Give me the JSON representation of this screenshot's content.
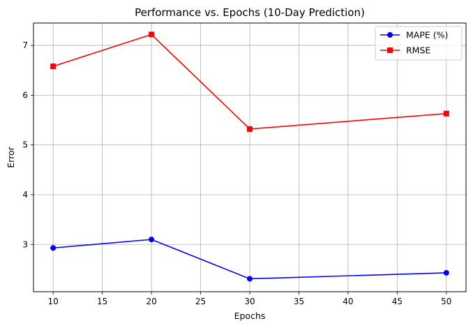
{
  "chart_data": {
    "type": "line",
    "title": "Performance vs. Epochs (10-Day Prediction)",
    "xlabel": "Epochs",
    "ylabel": "Error",
    "x": [
      10,
      20,
      30,
      50
    ],
    "xlim": [
      8,
      52
    ],
    "ylim": [
      2.05,
      7.45
    ],
    "xticks": [
      "10",
      "15",
      "20",
      "25",
      "30",
      "35",
      "40",
      "45",
      "50"
    ],
    "yticks": [
      "3",
      "4",
      "5",
      "6",
      "7"
    ],
    "grid": true,
    "legend_position": "top-right",
    "series": [
      {
        "name": "MAPE (%)",
        "values": [
          2.93,
          3.1,
          2.31,
          2.43
        ],
        "color": "#0000ff",
        "marker": "circle"
      },
      {
        "name": "RMSE",
        "values": [
          6.58,
          7.22,
          5.32,
          5.63
        ],
        "color": "#ff0000",
        "marker": "square"
      }
    ]
  }
}
